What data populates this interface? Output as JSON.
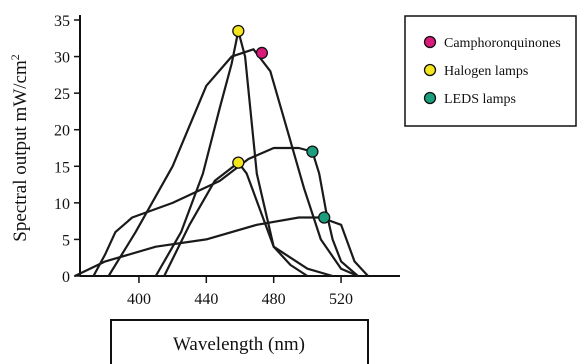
{
  "chart_data": {
    "type": "line",
    "xlabel": "Wavelength (nm)",
    "ylabel": "Spectral output mW/cm2",
    "ylabel_main": "Spectral output mW/cm",
    "ylabel_sup": "2",
    "xlim": [
      365,
      555
    ],
    "ylim": [
      0,
      35
    ],
    "x_ticks": [
      400,
      440,
      480,
      520
    ],
    "y_ticks": [
      0,
      5,
      10,
      15,
      20,
      25,
      30,
      35
    ],
    "grid": false,
    "legend_position": "top-right",
    "legend": [
      {
        "label": "Camphoronquinones",
        "color": "#d81b7a"
      },
      {
        "label": "Halogen lamps",
        "color": "#f4e51c"
      },
      {
        "label": "LEDS lamps",
        "color": "#1a9e7e"
      }
    ],
    "series": [
      {
        "points": [
          [
            410,
            0
          ],
          [
            425,
            6
          ],
          [
            438,
            14
          ],
          [
            448,
            23
          ],
          [
            455,
            29
          ],
          [
            459,
            33.5
          ],
          [
            463,
            30
          ],
          [
            470,
            14
          ],
          [
            480,
            4
          ],
          [
            500,
            1
          ],
          [
            515,
            0
          ]
        ],
        "marker": {
          "x": 459,
          "y": 33.5,
          "color": "#f4e51c"
        }
      },
      {
        "points": [
          [
            382,
            0
          ],
          [
            398,
            6
          ],
          [
            420,
            15
          ],
          [
            440,
            26
          ],
          [
            455,
            30
          ],
          [
            468,
            31
          ],
          [
            478,
            28
          ],
          [
            488,
            20
          ],
          [
            498,
            12
          ],
          [
            508,
            5
          ],
          [
            520,
            1
          ],
          [
            530,
            0
          ]
        ],
        "marker": {
          "x": 473,
          "y": 30.5,
          "color": "#d81b7a"
        }
      },
      {
        "points": [
          [
            415,
            0
          ],
          [
            430,
            7
          ],
          [
            445,
            13
          ],
          [
            459,
            15.5
          ],
          [
            464,
            14
          ],
          [
            472,
            9
          ],
          [
            480,
            4
          ],
          [
            490,
            1.5
          ],
          [
            500,
            0
          ]
        ],
        "marker": {
          "x": 459,
          "y": 15.5,
          "color": "#f4e51c"
        }
      },
      {
        "points": [
          [
            373,
            0
          ],
          [
            380,
            3
          ],
          [
            386,
            6
          ],
          [
            396,
            8
          ],
          [
            420,
            10
          ],
          [
            448,
            13
          ],
          [
            465,
            16
          ],
          [
            480,
            17.5
          ],
          [
            495,
            17.5
          ],
          [
            503,
            17
          ],
          [
            507,
            14
          ],
          [
            511,
            9
          ],
          [
            515,
            5
          ],
          [
            520,
            2
          ],
          [
            530,
            0
          ]
        ],
        "marker": {
          "x": 503,
          "y": 17,
          "color": "#1a9e7e"
        }
      },
      {
        "points": [
          [
            362,
            0
          ],
          [
            380,
            2
          ],
          [
            410,
            4
          ],
          [
            440,
            5
          ],
          [
            470,
            7
          ],
          [
            495,
            8
          ],
          [
            508,
            8
          ],
          [
            520,
            7
          ],
          [
            528,
            2
          ],
          [
            536,
            0
          ]
        ],
        "marker": {
          "x": 510,
          "y": 8,
          "color": "#1a9e7e"
        }
      }
    ]
  }
}
